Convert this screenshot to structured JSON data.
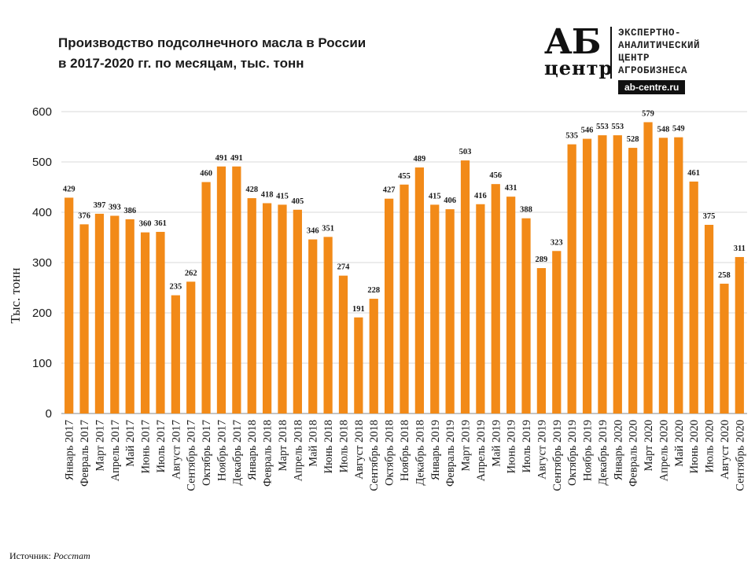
{
  "title": {
    "line1": "Производство  подсолнечного  масла в России",
    "line2": "в 2017-2020 гг. по месяцам, тыс. тонн"
  },
  "logo": {
    "mark_top": "АБ",
    "mark_bottom": "центр",
    "tagline": [
      "ЭКСПЕРТНО-",
      "АНАЛИТИЧЕСКИЙ",
      "ЦЕНТР",
      "АГРОБИЗНЕСА"
    ],
    "url": "ab-centre.ru"
  },
  "source": {
    "label": "Источник:",
    "value": "Росстат"
  },
  "colors": {
    "bar": "#f28a18",
    "grid": "#d9d9d9",
    "axis": "#888888",
    "text": "#1a1a1a"
  },
  "chart_data": {
    "type": "bar",
    "title": "Производство  подсолнечного  масла в России в 2017-2020 гг. по месяцам, тыс. тонн",
    "xlabel": "",
    "ylabel": "Тыс. тонн",
    "ylim": [
      0,
      600
    ],
    "yticks": [
      0,
      100,
      200,
      300,
      400,
      500,
      600
    ],
    "grid": true,
    "legend": "none",
    "categories": [
      "Январь 2017",
      "Февраль 2017",
      "Март 2017",
      "Апрель 2017",
      "Май 2017",
      "Июнь 2017",
      "Июль 2017",
      "Август 2017",
      "Сентябрь 2017",
      "Октябрь 2017",
      "Ноябрь 2017",
      "Декабрь 2017",
      "Январь 2018",
      "Февраль 2018",
      "Март 2018",
      "Апрель 2018",
      "Май 2018",
      "Июнь 2018",
      "Июль 2018",
      "Август 2018",
      "Сентябрь 2018",
      "Октябрь 2018",
      "Ноябрь 2018",
      "Декабрь 2018",
      "Январь 2019",
      "Февраль 2019",
      "Март 2019",
      "Апрель 2019",
      "Май 2019",
      "Июнь 2019",
      "Июль 2019",
      "Август 2019",
      "Сентябрь 2019",
      "Октябрь 2019",
      "Ноябрь 2019",
      "Декабрь 2019",
      "Январь 2020",
      "Февраль 2020",
      "Март 2020",
      "Апрель 2020",
      "Май 2020",
      "Июнь 2020",
      "Июль 2020",
      "Август 2020",
      "Сентябрь 2020"
    ],
    "values": [
      429,
      376,
      397,
      393,
      386,
      360,
      361,
      235,
      262,
      460,
      491,
      491,
      428,
      418,
      415,
      405,
      346,
      351,
      274,
      191,
      228,
      427,
      455,
      489,
      415,
      406,
      503,
      416,
      456,
      431,
      388,
      289,
      323,
      535,
      546,
      553,
      553,
      528,
      579,
      548,
      549,
      461,
      375,
      258,
      311
    ]
  }
}
